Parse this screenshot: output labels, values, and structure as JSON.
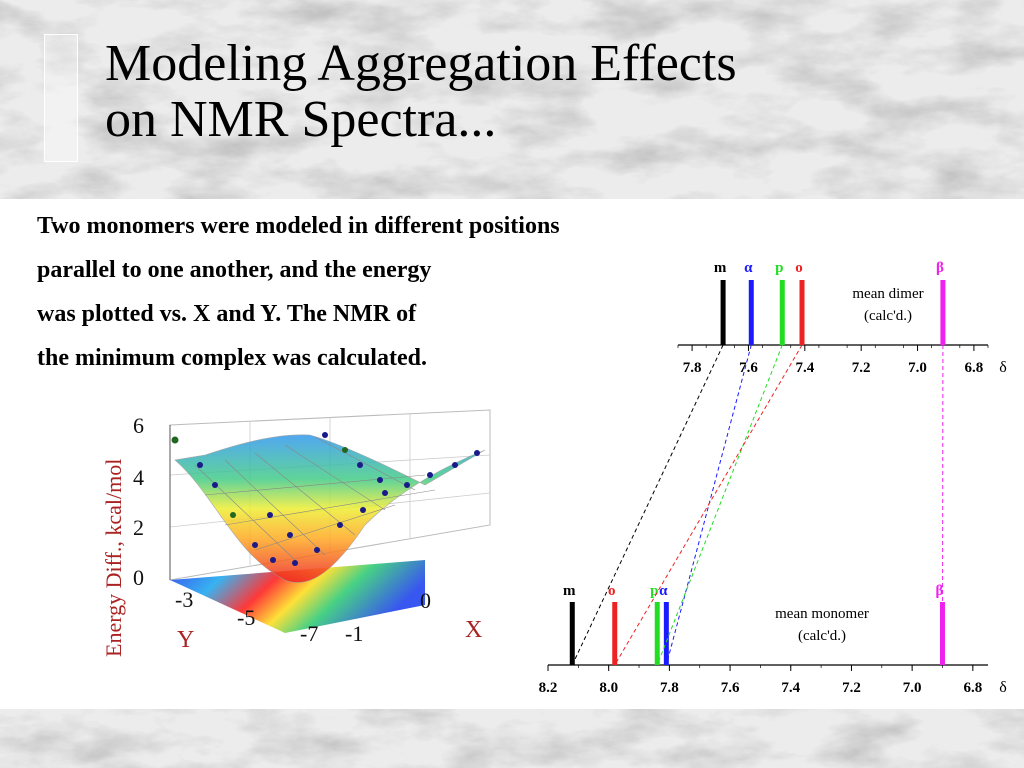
{
  "slide": {
    "title_line1": "Modeling Aggregation Effects",
    "title_line2": "on NMR Spectra...",
    "body_lines": [
      "Two monomers were modeled in different positions",
      "parallel to one another, and the energy",
      "was plotted vs. X and Y. The NMR of",
      "the minimum complex was calculated."
    ]
  },
  "energy_plot": {
    "zlabel": "Energy Diff., kcal/mol",
    "ylabel": "Y",
    "xlabel": "X",
    "z_ticks": [
      "6",
      "4",
      "2",
      "0"
    ],
    "y_ticks": [
      "-3",
      "-5",
      "-7"
    ],
    "x_ticks": [
      "-1",
      "0"
    ]
  },
  "chart_data": [
    {
      "type": "bar",
      "title": "mean dimer",
      "subtitle": "(calc'd.)",
      "xlabel": "δ",
      "xlim": [
        6.75,
        7.85
      ],
      "x_ticks": [
        "7.8",
        "7.6",
        "7.4",
        "7.2",
        "7.0",
        "6.8"
      ],
      "lines": [
        {
          "label": "m",
          "x": 7.69,
          "color": "#000000"
        },
        {
          "label": "α",
          "x": 7.59,
          "color": "#1a1aff"
        },
        {
          "label": "p",
          "x": 7.48,
          "color": "#22dd22"
        },
        {
          "label": "o",
          "x": 7.41,
          "color": "#ee2222"
        },
        {
          "label": "β",
          "x": 6.91,
          "color": "#ee22ee"
        }
      ]
    },
    {
      "type": "bar",
      "title": "mean monomer",
      "subtitle": "(calc'd.)",
      "xlabel": "δ",
      "xlim": [
        6.75,
        8.2
      ],
      "x_ticks": [
        "8.2",
        "8.0",
        "7.8",
        "7.6",
        "7.4",
        "7.2",
        "7.0",
        "6.8"
      ],
      "lines": [
        {
          "label": "m",
          "x": 8.12,
          "color": "#000000"
        },
        {
          "label": "o",
          "x": 7.98,
          "color": "#ee2222"
        },
        {
          "label": "p",
          "x": 7.84,
          "color": "#22dd22"
        },
        {
          "label": "α",
          "x": 7.81,
          "color": "#1a1aff"
        },
        {
          "label": "β",
          "x": 6.9,
          "color": "#ee22ee"
        }
      ]
    }
  ]
}
